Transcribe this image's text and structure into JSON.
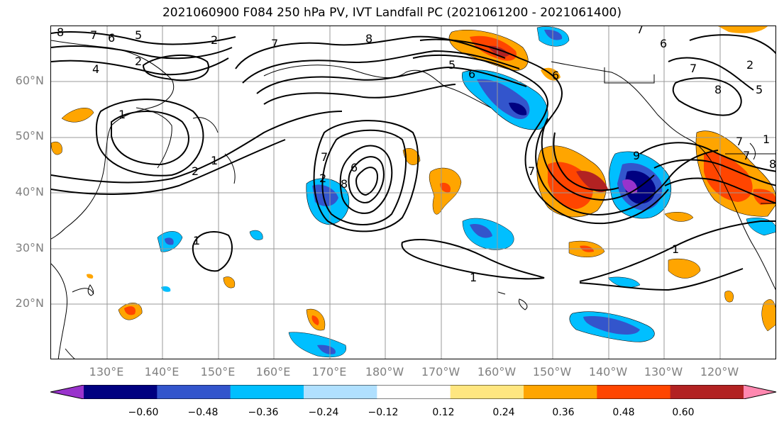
{
  "title": "2021060900 F084 250 hPa PV, IVT Landfall PC (2021061200 - 2021061400)",
  "latitude_labels": [
    "60°N",
    "50°N",
    "40°N",
    "30°N",
    "20°N"
  ],
  "longitude_labels": [
    "130°E",
    "140°E",
    "150°E",
    "160°E",
    "170°E",
    "180°W",
    "170°W",
    "160°W",
    "150°W",
    "140°W",
    "130°W",
    "120°W"
  ],
  "contour_labels": [
    "8",
    "7",
    "6",
    "5",
    "2",
    "7",
    "8",
    "5",
    "6",
    "6",
    "7",
    "7",
    "4",
    "1",
    "2",
    "1",
    "1",
    "8",
    "7",
    "2",
    "6",
    "8",
    "2",
    "7",
    "8",
    "6",
    "5",
    "1",
    "1",
    "1",
    "9",
    "7",
    "7",
    "2"
  ],
  "colorbar": {
    "tick_labels": [
      "−0.60",
      "−0.48",
      "−0.36",
      "−0.24",
      "−0.12",
      "0.12",
      "0.24",
      "0.36",
      "0.48",
      "0.60"
    ],
    "colors": [
      "#9933cc",
      "#000080",
      "#3355cc",
      "#00bfff",
      "#b0e0ff",
      "#ffffff",
      "#ffe680",
      "#ffa500",
      "#ff4500",
      "#b22222",
      "#ff88b0"
    ]
  },
  "colors": {
    "frame": "#000000",
    "grid": "#999999",
    "coast": "#000000",
    "label_gray": "#808080"
  }
}
